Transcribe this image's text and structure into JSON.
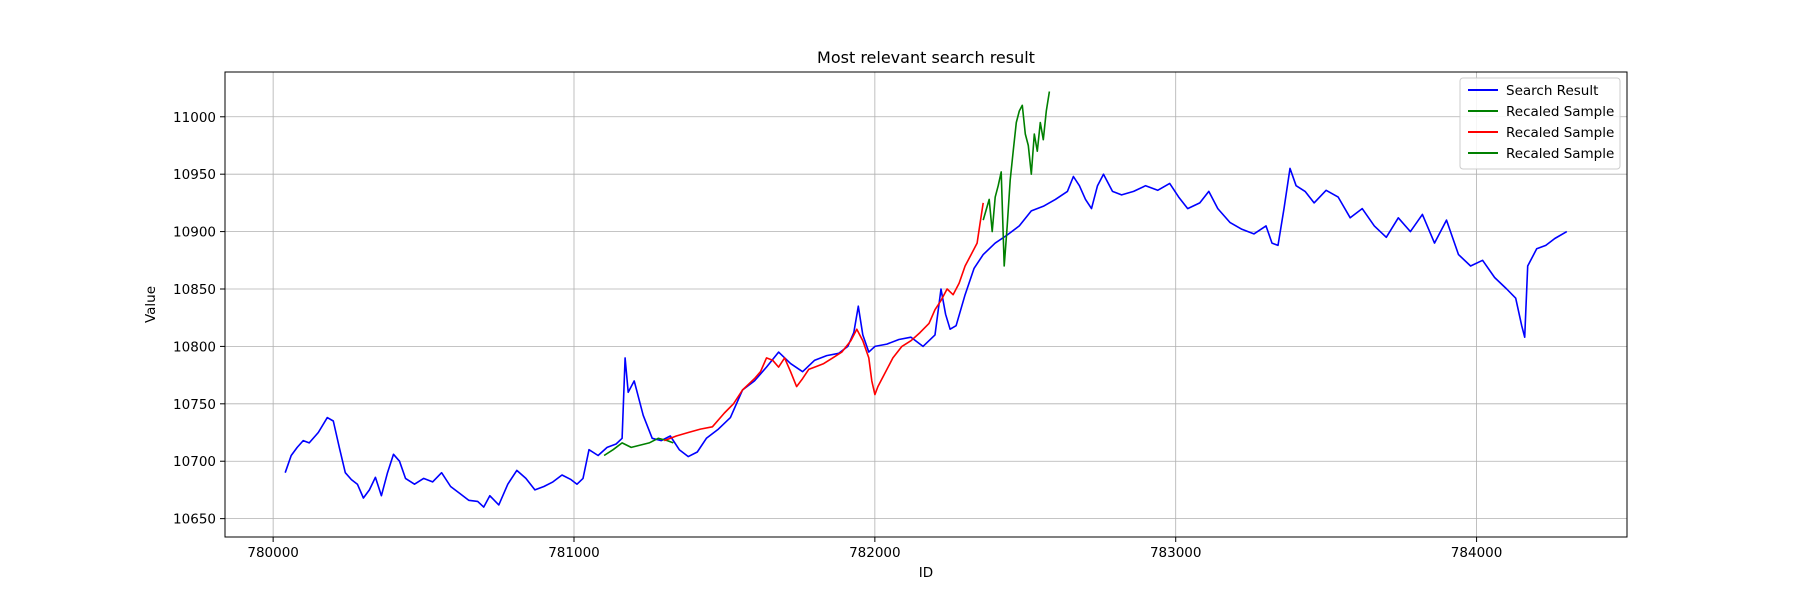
{
  "chart_data": {
    "type": "line",
    "title": "Most relevant search result",
    "xlabel": "ID",
    "ylabel": "Value",
    "xlim": [
      779840,
      784500
    ],
    "ylim": [
      10634,
      11039
    ],
    "xticks": [
      780000,
      781000,
      782000,
      783000,
      784000
    ],
    "yticks": [
      10650,
      10700,
      10750,
      10800,
      10850,
      10900,
      10950,
      11000
    ],
    "grid": true,
    "legend_position": "top-right",
    "series": [
      {
        "name": "Search Result",
        "color": "#0000ff",
        "x": [
          780040,
          780060,
          780080,
          780100,
          780120,
          780150,
          780180,
          780200,
          780220,
          780240,
          780260,
          780280,
          780300,
          780320,
          780340,
          780360,
          780380,
          780400,
          780420,
          780440,
          780470,
          780500,
          780530,
          780560,
          780590,
          780620,
          780650,
          780680,
          780700,
          780720,
          780750,
          780780,
          780810,
          780840,
          780870,
          780900,
          780930,
          780960,
          780990,
          781010,
          781030,
          781050,
          781080,
          781110,
          781140,
          781160,
          781170,
          781180,
          781200,
          781230,
          781260,
          781290,
          781320,
          781350,
          781380,
          781410,
          781440,
          781480,
          781520,
          781560,
          781600,
          781640,
          781680,
          781720,
          781760,
          781800,
          781840,
          781880,
          781910,
          781930,
          781945,
          781960,
          781980,
          782000,
          782040,
          782080,
          782120,
          782160,
          782200,
          782220,
          782235,
          782250,
          782270,
          782300,
          782330,
          782360,
          782400,
          782440,
          782480,
          782520,
          782560,
          782600,
          782640,
          782660,
          782680,
          782700,
          782720,
          782740,
          782760,
          782790,
          782820,
          782860,
          782900,
          782940,
          782980,
          783010,
          783040,
          783080,
          783110,
          783140,
          783180,
          783220,
          783260,
          783300,
          783320,
          783340,
          783360,
          783380,
          783400,
          783430,
          783460,
          783500,
          783540,
          783580,
          783620,
          783660,
          783700,
          783740,
          783780,
          783820,
          783860,
          783900,
          783940,
          783980,
          784020,
          784060,
          784100,
          784130,
          784150,
          784160,
          784170,
          784200,
          784230,
          784260,
          784300
        ],
        "y": [
          10690,
          10705,
          10712,
          10718,
          10716,
          10725,
          10738,
          10735,
          10712,
          10690,
          10684,
          10680,
          10668,
          10675,
          10686,
          10670,
          10690,
          10706,
          10700,
          10685,
          10680,
          10685,
          10682,
          10690,
          10678,
          10672,
          10666,
          10665,
          10660,
          10670,
          10662,
          10680,
          10692,
          10685,
          10675,
          10678,
          10682,
          10688,
          10684,
          10680,
          10685,
          10710,
          10705,
          10712,
          10715,
          10720,
          10790,
          10760,
          10770,
          10740,
          10720,
          10718,
          10722,
          10710,
          10704,
          10708,
          10720,
          10728,
          10738,
          10762,
          10770,
          10782,
          10795,
          10785,
          10778,
          10788,
          10792,
          10794,
          10800,
          10812,
          10835,
          10810,
          10795,
          10800,
          10802,
          10806,
          10808,
          10800,
          10810,
          10850,
          10828,
          10815,
          10818,
          10845,
          10868,
          10880,
          10890,
          10897,
          10905,
          10918,
          10922,
          10928,
          10935,
          10948,
          10940,
          10928,
          10920,
          10940,
          10950,
          10935,
          10932,
          10935,
          10940,
          10936,
          10942,
          10930,
          10920,
          10925,
          10935,
          10920,
          10908,
          10902,
          10898,
          10905,
          10890,
          10888,
          10920,
          10955,
          10940,
          10935,
          10925,
          10936,
          10930,
          10912,
          10920,
          10905,
          10895,
          10912,
          10900,
          10915,
          10890,
          10910,
          10880,
          10870,
          10875,
          10860,
          10850,
          10842,
          10818,
          10808,
          10870,
          10885,
          10888,
          10894,
          10900
        ]
      },
      {
        "name": "Recaled Sample",
        "color": "#008000",
        "x": [
          781100,
          781130,
          781160,
          781190,
          781220,
          781250,
          781280,
          781310,
          781330
        ],
        "y": [
          10705,
          10710,
          10716,
          10712,
          10714,
          10716,
          10720,
          10718,
          10716
        ]
      },
      {
        "name": "Recaled Sample",
        "color": "#ff0000",
        "x": [
          781300,
          781340,
          781380,
          781420,
          781460,
          781500,
          781530,
          781560,
          781600,
          781620,
          781640,
          781660,
          781680,
          781700,
          781720,
          781740,
          781760,
          781780,
          781800,
          781830,
          781860,
          781890,
          781920,
          781940,
          781960,
          781980,
          781990,
          782000,
          782010,
          782030,
          782060,
          782090,
          782120,
          782150,
          782180,
          782200,
          782220,
          782240,
          782260,
          782280,
          782300,
          782320,
          782340,
          782350,
          782360
        ],
        "y": [
          10718,
          10722,
          10725,
          10728,
          10730,
          10742,
          10750,
          10762,
          10772,
          10778,
          10790,
          10788,
          10782,
          10790,
          10778,
          10765,
          10772,
          10780,
          10782,
          10785,
          10790,
          10795,
          10805,
          10815,
          10805,
          10790,
          10770,
          10758,
          10765,
          10775,
          10790,
          10800,
          10805,
          10812,
          10820,
          10832,
          10840,
          10850,
          10845,
          10855,
          10870,
          10880,
          10890,
          10908,
          10925
        ]
      },
      {
        "name": "Recaled Sample",
        "color": "#008000",
        "x": [
          782360,
          782380,
          782390,
          782400,
          782410,
          782420,
          782430,
          782440,
          782450,
          782460,
          782470,
          782480,
          782490,
          782500,
          782510,
          782520,
          782530,
          782540,
          782550,
          782560,
          782570,
          782580
        ],
        "y": [
          10910,
          10928,
          10900,
          10930,
          10940,
          10952,
          10870,
          10905,
          10945,
          10970,
          10995,
          11005,
          11010,
          10985,
          10975,
          10950,
          10985,
          10970,
          10995,
          10980,
          11005,
          11022
        ]
      }
    ]
  }
}
